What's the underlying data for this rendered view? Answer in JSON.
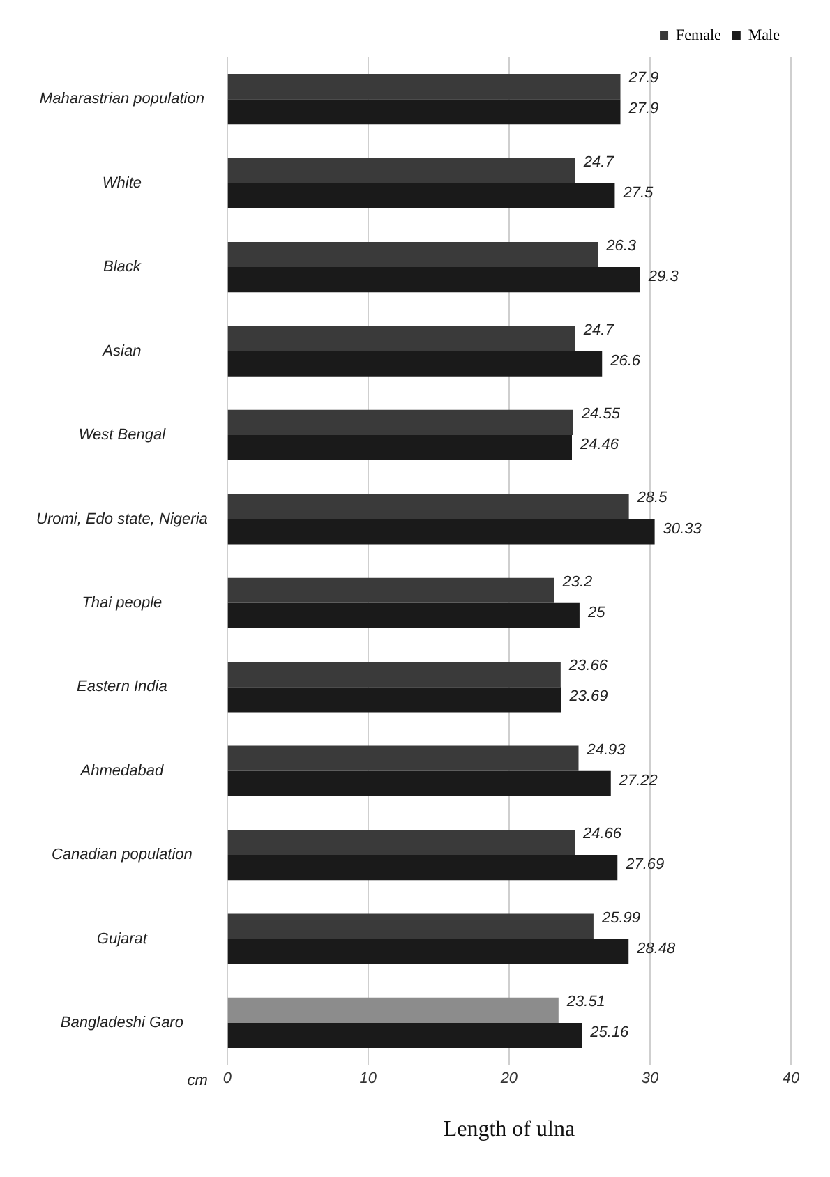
{
  "chart_data": {
    "type": "bar",
    "orientation": "horizontal",
    "xlabel": "Length of ulna",
    "categories": [
      "Maharastrian population",
      "White",
      "Black",
      "Asian",
      "West Bengal",
      "Uromi, Edo state, Nigeria",
      "Thai people",
      "Eastern India",
      "Ahmedabad",
      "Canadian population",
      "Gujarat",
      "Bangladeshi Garo"
    ],
    "series": [
      {
        "name": "Female",
        "color": "#3a3a3a",
        "colors": [
          "#3a3a3a",
          "#3a3a3a",
          "#3a3a3a",
          "#3a3a3a",
          "#3a3a3a",
          "#3a3a3a",
          "#3a3a3a",
          "#3a3a3a",
          "#3a3a3a",
          "#3a3a3a",
          "#3a3a3a",
          "#8c8c8c"
        ],
        "values": [
          27.9,
          24.7,
          26.3,
          24.7,
          24.55,
          28.5,
          23.2,
          23.66,
          24.93,
          24.66,
          25.99,
          23.51
        ]
      },
      {
        "name": "Male",
        "color": "#1a1a1a",
        "values": [
          27.9,
          27.5,
          29.3,
          26.6,
          24.46,
          30.33,
          25,
          23.69,
          27.22,
          27.69,
          28.48,
          25.16
        ]
      }
    ],
    "xlim": [
      0,
      40
    ],
    "xticks": [
      0,
      10,
      20,
      30,
      40
    ],
    "grid": "x",
    "legend": "top right",
    "data_labels": true,
    "annotations": [
      "cm"
    ]
  }
}
